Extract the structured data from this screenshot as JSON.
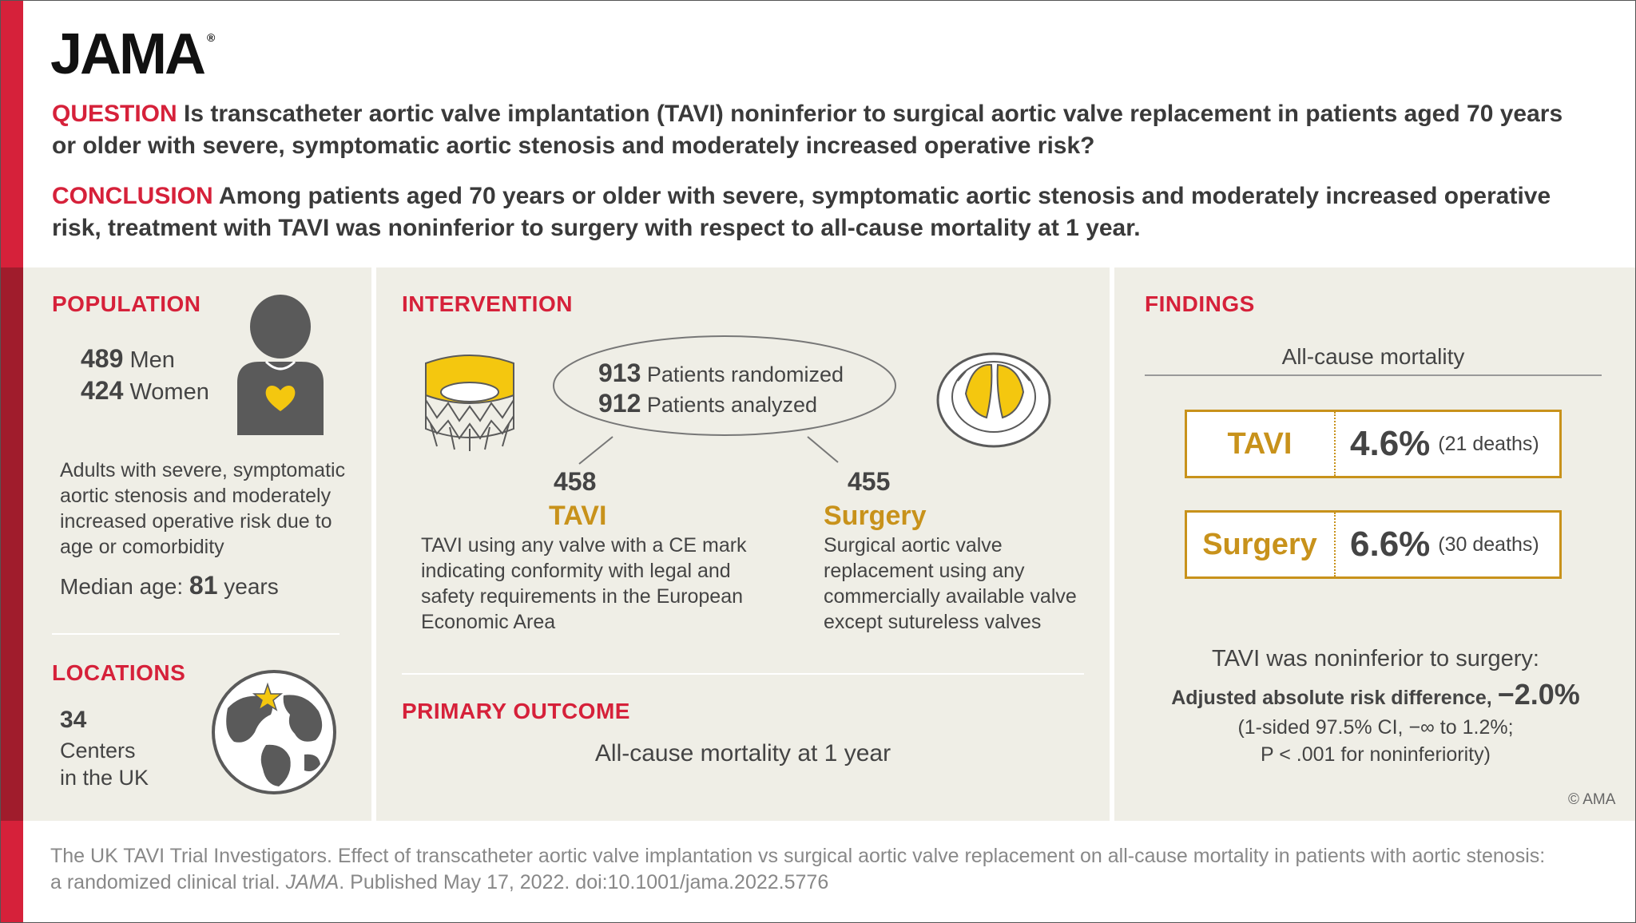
{
  "logo": "JAMA",
  "question": {
    "label": "QUESTION",
    "text": "Is transcatheter aortic valve implantation (TAVI) noninferior to surgical aortic valve replacement in patients aged 70 years or older with severe, symptomatic aortic stenosis and moderately increased operative risk?"
  },
  "conclusion": {
    "label": "CONCLUSION",
    "text": "Among patients aged 70 years or older with severe, symptomatic aortic stenosis and moderately increased operative risk, treatment with TAVI was noninferior to surgery with respect to all-cause mortality at 1 year."
  },
  "population": {
    "title": "POPULATION",
    "men_count": "489",
    "men_label": "Men",
    "women_count": "424",
    "women_label": "Women",
    "description": "Adults with severe, symptomatic aortic stenosis and moderately increased operative risk due to age or comorbidity",
    "median_label": "Median age:",
    "median_value": "81",
    "median_unit": "years"
  },
  "locations": {
    "title": "LOCATIONS",
    "count": "34",
    "line1": "Centers",
    "line2": "in the UK"
  },
  "intervention": {
    "title": "INTERVENTION",
    "randomized_count": "913",
    "randomized_label": "Patients randomized",
    "analyzed_count": "912",
    "analyzed_label": "Patients analyzed",
    "arm1": {
      "count": "458",
      "name": "TAVI",
      "description": "TAVI using any valve with a CE mark indicating conformity with legal and safety requirements in the European Economic Area"
    },
    "arm2": {
      "count": "455",
      "name": "Surgery",
      "description": "Surgical aortic valve replacement using any commercially available valve except sutureless valves"
    }
  },
  "primary_outcome": {
    "title": "PRIMARY OUTCOME",
    "text": "All-cause mortality at 1 year"
  },
  "findings": {
    "title": "FINDINGS",
    "subtitle": "All-cause mortality",
    "rows": [
      {
        "label": "TAVI",
        "value": "4.6%",
        "detail": "(21 deaths)"
      },
      {
        "label": "Surgery",
        "value": "6.6%",
        "detail": "(30 deaths)"
      }
    ],
    "summary": "TAVI was noninferior to surgery:",
    "ard_label": "Adjusted absolute risk difference,",
    "ard_value": "−2.0%",
    "ci_line1": "(1-sided 97.5% CI, −∞ to 1.2%;",
    "ci_line2": "P < .001 for noninferiority)",
    "copyright": "© AMA"
  },
  "citation": {
    "part1": "The UK TAVI Trial Investigators. Effect of transcatheter aortic valve implantation vs surgical aortic valve replacement on all-cause mortality in patients with aortic stenosis: a randomized clinical trial.",
    "journal": "JAMA",
    "part2": ". Published May 17, 2022. doi:10.1001/jama.2022.5776"
  },
  "colors": {
    "red": "#d6213a",
    "dark_red": "#a01c2c",
    "gold": "#c8921b",
    "panel": "#efeee6"
  }
}
